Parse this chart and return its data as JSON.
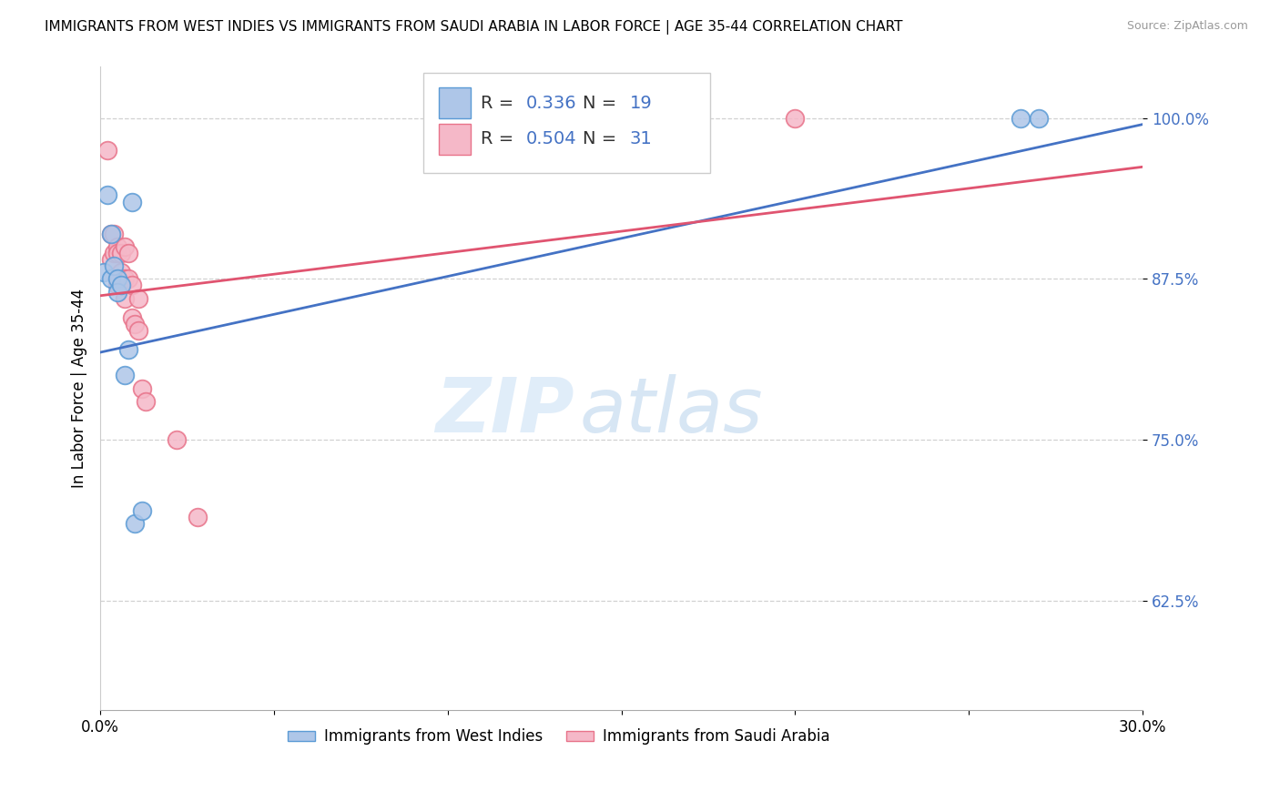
{
  "title": "IMMIGRANTS FROM WEST INDIES VS IMMIGRANTS FROM SAUDI ARABIA IN LABOR FORCE | AGE 35-44 CORRELATION CHART",
  "source": "Source: ZipAtlas.com",
  "ylabel": "In Labor Force | Age 35-44",
  "xlim": [
    0.0,
    0.3
  ],
  "ylim": [
    0.54,
    1.04
  ],
  "yticks": [
    0.625,
    0.75,
    0.875,
    1.0
  ],
  "ytick_labels": [
    "62.5%",
    "75.0%",
    "87.5%",
    "100.0%"
  ],
  "xticks": [
    0.0,
    0.05,
    0.1,
    0.15,
    0.2,
    0.25,
    0.3
  ],
  "xtick_labels_show": [
    "0.0%",
    "30.0%"
  ],
  "blue_R": 0.336,
  "blue_N": 19,
  "pink_R": 0.504,
  "pink_N": 31,
  "blue_fill_color": "#aec6e8",
  "pink_fill_color": "#f5b8c8",
  "blue_edge_color": "#5b9bd5",
  "pink_edge_color": "#e8738a",
  "blue_line_color": "#4472c4",
  "pink_line_color": "#e05470",
  "legend_label_blue": "Immigrants from West Indies",
  "legend_label_pink": "Immigrants from Saudi Arabia",
  "watermark_zip": "ZIP",
  "watermark_atlas": "atlas",
  "blue_points_x": [
    0.001,
    0.002,
    0.003,
    0.003,
    0.004,
    0.005,
    0.005,
    0.006,
    0.007,
    0.008,
    0.009,
    0.01,
    0.012,
    0.265,
    0.27
  ],
  "blue_points_y": [
    0.88,
    0.94,
    0.91,
    0.875,
    0.885,
    0.875,
    0.865,
    0.87,
    0.8,
    0.82,
    0.935,
    0.685,
    0.695,
    1.0,
    1.0
  ],
  "pink_points_x": [
    0.002,
    0.003,
    0.003,
    0.004,
    0.004,
    0.005,
    0.005,
    0.005,
    0.006,
    0.006,
    0.007,
    0.007,
    0.007,
    0.008,
    0.008,
    0.009,
    0.009,
    0.01,
    0.011,
    0.011,
    0.012,
    0.013,
    0.022,
    0.028,
    0.2
  ],
  "pink_points_y": [
    0.975,
    0.91,
    0.89,
    0.91,
    0.895,
    0.9,
    0.895,
    0.87,
    0.895,
    0.88,
    0.9,
    0.875,
    0.86,
    0.895,
    0.875,
    0.87,
    0.845,
    0.84,
    0.86,
    0.835,
    0.79,
    0.78,
    0.75,
    0.69,
    1.0
  ],
  "blue_line_x0": 0.0,
  "blue_line_y0": 0.818,
  "blue_line_x1": 0.3,
  "blue_line_y1": 0.995,
  "pink_line_x0": 0.0,
  "pink_line_y0": 0.862,
  "pink_line_x1": 0.3,
  "pink_line_y1": 0.962
}
